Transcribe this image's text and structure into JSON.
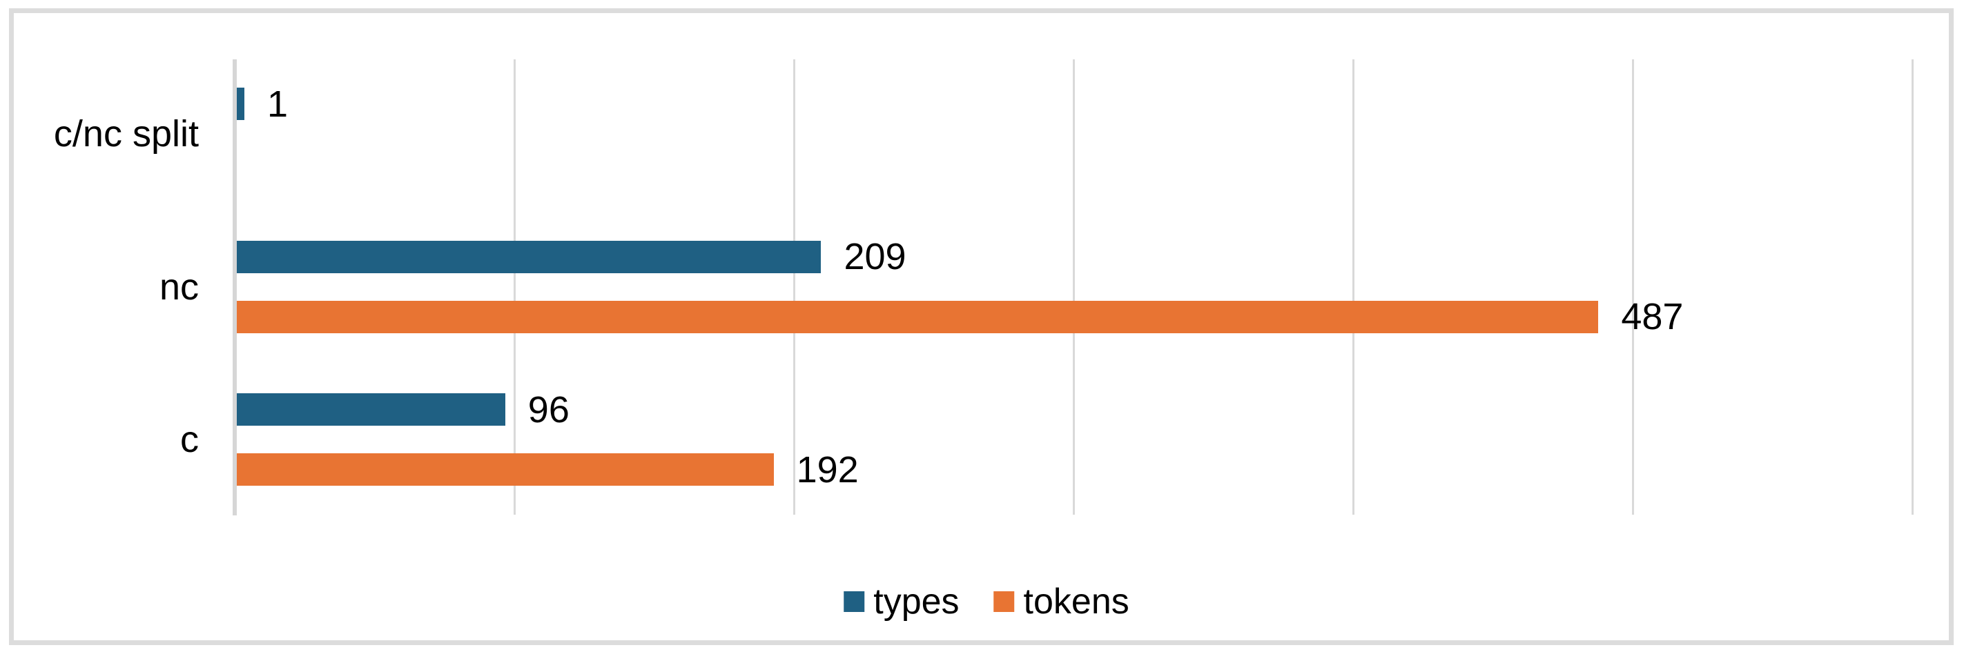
{
  "chart_data": {
    "type": "bar",
    "orientation": "horizontal",
    "title": "",
    "categories": [
      "c/nc split",
      "nc",
      "c"
    ],
    "series": [
      {
        "name": "types",
        "color": "#1F6083",
        "values": [
          1,
          209,
          96
        ],
        "data_labels": [
          "1",
          "209",
          "96"
        ]
      },
      {
        "name": "tokens",
        "color": "#E87433",
        "values": [
          null,
          487,
          192
        ],
        "data_labels": [
          "",
          "487",
          "192"
        ]
      }
    ],
    "xlim": [
      0,
      600
    ],
    "gridline_interval": 100,
    "grid": "vertical-only",
    "data_labels_position": "outside-end",
    "legend": {
      "position": "bottom-center",
      "entries": [
        "types",
        "tokens"
      ]
    },
    "colors": {
      "gridline": "#D9D9D9",
      "axis_line": "#D6D6D6",
      "chart_border": "#DCDCDC",
      "label_text": "#000000"
    }
  }
}
